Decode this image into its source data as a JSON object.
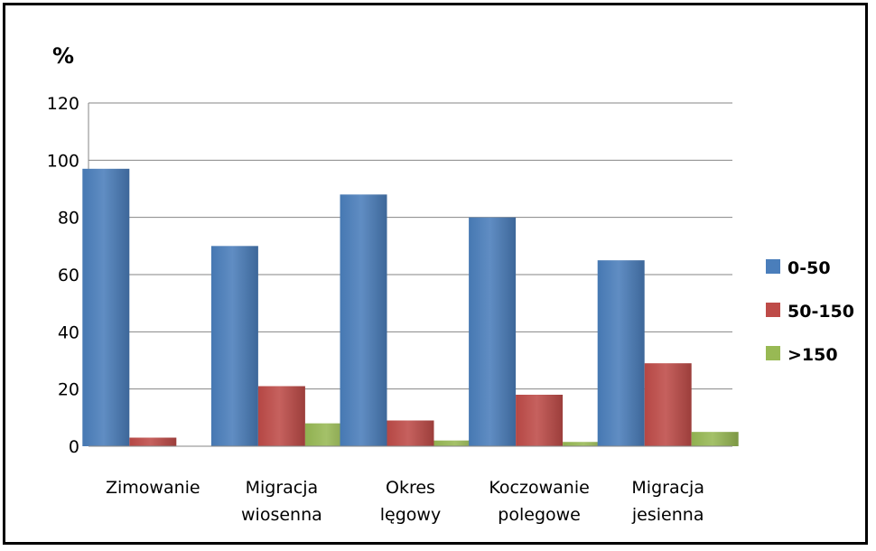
{
  "chart_data": {
    "type": "bar",
    "ylabel": "%",
    "ylim": [
      0,
      120
    ],
    "yticks": [
      "0",
      "20",
      "40",
      "60",
      "80",
      "100",
      "120"
    ],
    "categories": [
      [
        "Zimowanie"
      ],
      [
        "Migracja",
        "wiosenna"
      ],
      [
        "Okres",
        "lęgowy"
      ],
      [
        "Koczowanie",
        "polegowe"
      ],
      [
        "Migracja",
        "jesienna"
      ]
    ],
    "series": [
      {
        "name": "0-50",
        "color": "#4a7ebb",
        "values": [
          97,
          70,
          88,
          80,
          65
        ]
      },
      {
        "name": "50-150",
        "color": "#be4b48",
        "values": [
          3,
          21,
          9,
          18,
          29
        ]
      },
      {
        "name": ">150",
        "color": "#98b954",
        "values": [
          0,
          8,
          2,
          1.5,
          5
        ]
      }
    ],
    "grid": true,
    "legend_position": "right"
  }
}
